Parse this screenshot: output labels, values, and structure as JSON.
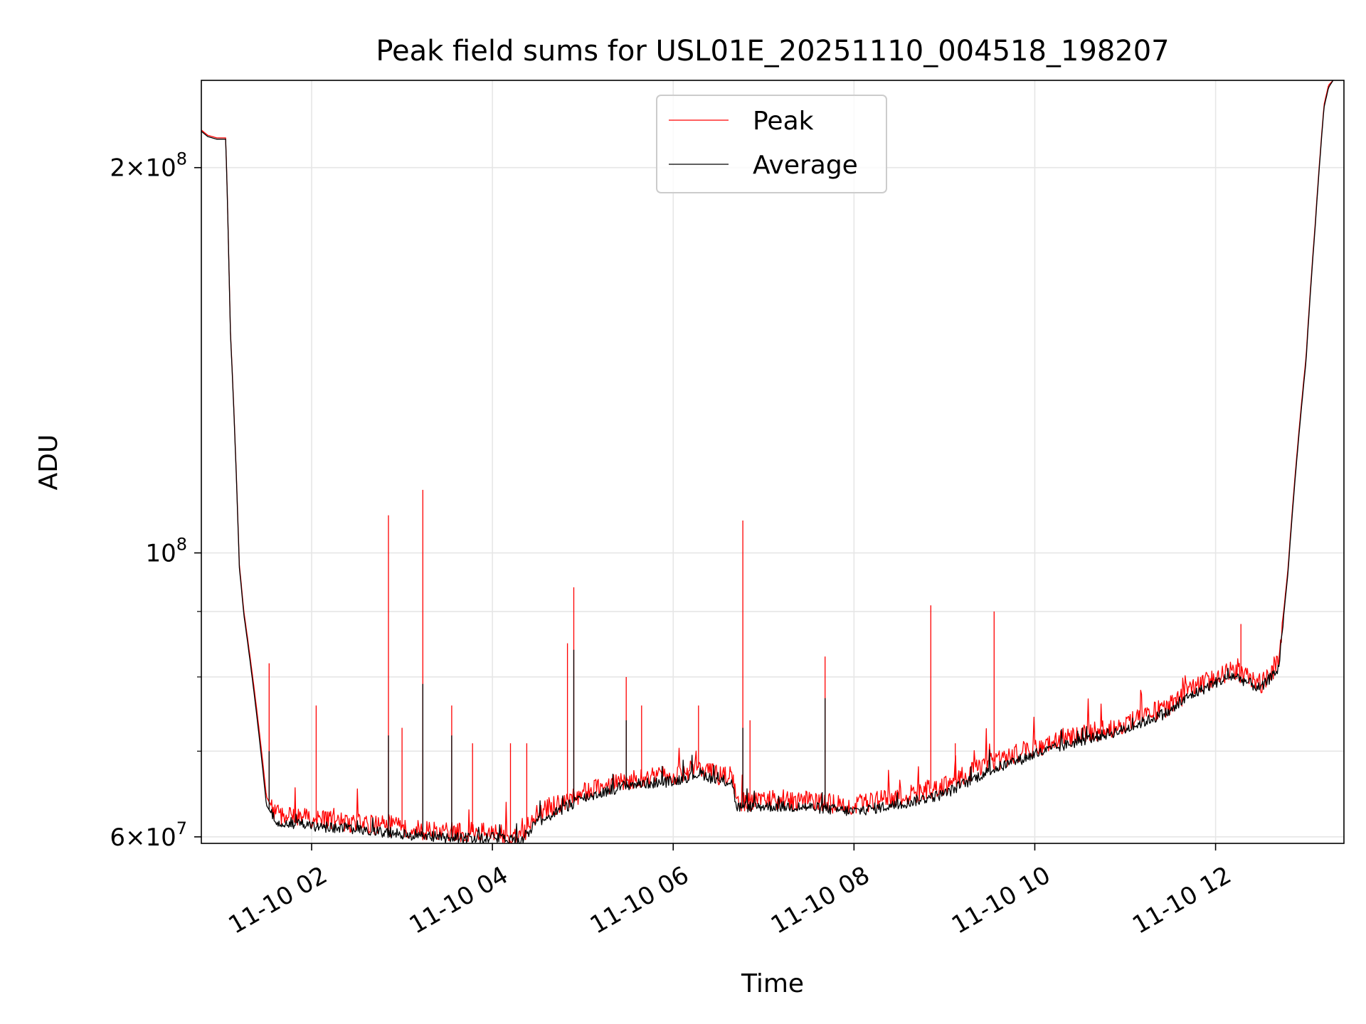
{
  "chart_data": {
    "type": "line",
    "title": "Peak field sums for USL01E_20251110_004518_198207",
    "xlabel": "Time",
    "ylabel": "ADU",
    "yscale": "log",
    "grid": true,
    "legend_position": "top-center",
    "x_unit": "hours since 2025-11-10 00:00",
    "xlim": [
      0.78,
      13.42
    ],
    "ylim": [
      59300000,
      234000000
    ],
    "x_ticks": [
      {
        "value": 2,
        "label": "11-10 02"
      },
      {
        "value": 4,
        "label": "11-10 04"
      },
      {
        "value": 6,
        "label": "11-10 06"
      },
      {
        "value": 8,
        "label": "11-10 08"
      },
      {
        "value": 10,
        "label": "11-10 10"
      },
      {
        "value": 12,
        "label": "11-10 12"
      }
    ],
    "y_ticks": [
      {
        "value": 60000000,
        "mantissa": "6",
        "base": "10",
        "exp": "7"
      },
      {
        "value": 100000000,
        "mantissa": "",
        "base": "10",
        "exp": "8"
      },
      {
        "value": 200000000,
        "mantissa": "2",
        "base": "10",
        "exp": "8"
      }
    ],
    "y_minor_ticks": [
      70000000,
      80000000,
      90000000
    ],
    "series": [
      {
        "name": "Peak",
        "color": "#ff0000",
        "x": [
          0.78,
          0.85,
          0.95,
          1.05,
          1.1,
          1.2,
          1.25,
          1.5,
          1.6,
          2.0,
          3.0,
          3.5,
          4.0,
          4.3,
          4.5,
          5.0,
          5.5,
          6.0,
          6.3,
          6.5,
          6.65,
          6.7,
          7.0,
          7.5,
          8.0,
          8.5,
          9.0,
          9.5,
          10.0,
          10.5,
          11.0,
          11.5,
          11.7,
          12.0,
          12.2,
          12.5,
          12.7,
          12.8,
          13.0,
          13.1,
          13.2,
          13.25,
          13.3
        ],
        "y": [
          214000000,
          212000000,
          211000000,
          211000000,
          150000000,
          98000000,
          90000000,
          64500000,
          62500000,
          62000000,
          61000000,
          60500000,
          60500000,
          59800000,
          62500000,
          65000000,
          66500000,
          67000000,
          68000000,
          67000000,
          67000000,
          63800000,
          64200000,
          64000000,
          63500000,
          64500000,
          65800000,
          68500000,
          70500000,
          72000000,
          73500000,
          76000000,
          78000000,
          80000000,
          81000000,
          79000000,
          82000000,
          97000000,
          142000000,
          180000000,
          224000000,
          232000000,
          234000000
        ],
        "spikes": [
          {
            "x": 1.53,
            "y": 82000000
          },
          {
            "x": 2.05,
            "y": 76000000
          },
          {
            "x": 2.85,
            "y": 107000000
          },
          {
            "x": 3.0,
            "y": 73000000
          },
          {
            "x": 3.23,
            "y": 112000000
          },
          {
            "x": 3.55,
            "y": 76000000
          },
          {
            "x": 3.78,
            "y": 71000000
          },
          {
            "x": 4.2,
            "y": 71000000
          },
          {
            "x": 4.38,
            "y": 71000000
          },
          {
            "x": 4.83,
            "y": 85000000
          },
          {
            "x": 4.9,
            "y": 94000000
          },
          {
            "x": 5.48,
            "y": 80000000
          },
          {
            "x": 5.65,
            "y": 76000000
          },
          {
            "x": 6.28,
            "y": 76000000
          },
          {
            "x": 6.77,
            "y": 106000000
          },
          {
            "x": 6.85,
            "y": 74000000
          },
          {
            "x": 7.68,
            "y": 83000000
          },
          {
            "x": 8.85,
            "y": 91000000
          },
          {
            "x": 9.12,
            "y": 71000000
          },
          {
            "x": 9.55,
            "y": 90000000
          },
          {
            "x": 12.28,
            "y": 88000000
          }
        ]
      },
      {
        "name": "Average",
        "color": "#000000",
        "x": [
          0.78,
          0.85,
          0.95,
          1.05,
          1.1,
          1.2,
          1.25,
          1.5,
          1.6,
          2.0,
          3.0,
          3.5,
          4.0,
          4.3,
          4.5,
          5.0,
          5.5,
          6.0,
          6.3,
          6.5,
          6.65,
          6.7,
          7.0,
          7.5,
          8.0,
          8.5,
          9.0,
          9.5,
          10.0,
          10.5,
          11.0,
          11.5,
          11.7,
          12.0,
          12.2,
          12.5,
          12.7,
          12.8,
          13.0,
          13.1,
          13.2,
          13.25,
          13.3
        ],
        "y": [
          213500000,
          211500000,
          210500000,
          210500000,
          149500000,
          97500000,
          89500000,
          63500000,
          61800000,
          61200000,
          60300000,
          59900000,
          59900000,
          59400000,
          61600000,
          64300000,
          65900000,
          66300000,
          67300000,
          66300000,
          66300000,
          63300000,
          63400000,
          63300000,
          62800000,
          63600000,
          64800000,
          67600000,
          69600000,
          71300000,
          72800000,
          75200000,
          77200000,
          79200000,
          80200000,
          78300000,
          81300000,
          96300000,
          141000000,
          179000000,
          223000000,
          231000000,
          234000000
        ],
        "spikes": [
          {
            "x": 1.53,
            "y": 70000000
          },
          {
            "x": 2.85,
            "y": 72000000
          },
          {
            "x": 3.23,
            "y": 79000000
          },
          {
            "x": 3.55,
            "y": 72000000
          },
          {
            "x": 4.9,
            "y": 84000000
          },
          {
            "x": 5.48,
            "y": 74000000
          },
          {
            "x": 6.77,
            "y": 73000000
          },
          {
            "x": 7.68,
            "y": 77000000
          },
          {
            "x": 12.28,
            "y": 80000000
          }
        ]
      }
    ]
  }
}
